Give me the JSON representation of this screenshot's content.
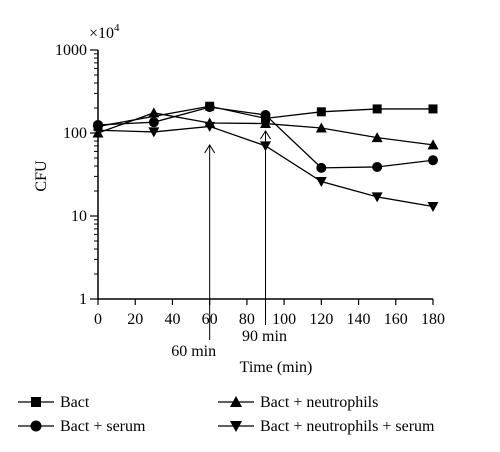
{
  "chart_data": {
    "type": "line",
    "title": "",
    "xlabel": "Time (min)",
    "ylabel": "CFU",
    "y_multiplier": "×10",
    "y_multiplier_exp": "4",
    "xlim": [
      0,
      180
    ],
    "ylim": [
      1,
      1000
    ],
    "yscale": "log",
    "grid": false,
    "legend_position": "bottom",
    "x_ticks": [
      0,
      20,
      40,
      60,
      80,
      100,
      120,
      140,
      160,
      180
    ],
    "y_ticks": [
      1,
      10,
      100,
      1000
    ],
    "series": [
      {
        "name": "Bact",
        "marker": "square",
        "x": [
          0,
          60,
          90,
          120,
          150,
          180
        ],
        "y": [
          120,
          210,
          150,
          180,
          195,
          195
        ]
      },
      {
        "name": "Bact + serum",
        "marker": "circle",
        "x": [
          0,
          30,
          60,
          90,
          120,
          150,
          180
        ],
        "y": [
          125,
          135,
          205,
          165,
          38,
          39,
          47
        ]
      },
      {
        "name": "Bact + neutrophils",
        "marker": "triangle-up",
        "x": [
          0,
          30,
          60,
          90,
          120,
          150,
          180
        ],
        "y": [
          100,
          175,
          132,
          130,
          115,
          88,
          72
        ]
      },
      {
        "name": "Bact + neutrophils + serum",
        "marker": "triangle-down",
        "x": [
          0,
          30,
          60,
          90,
          120,
          150,
          180
        ],
        "y": [
          108,
          103,
          120,
          70,
          26,
          17,
          13
        ]
      }
    ],
    "annotations": [
      {
        "text": "60 min",
        "x": 60
      },
      {
        "text": "90 min",
        "x": 90
      }
    ]
  }
}
